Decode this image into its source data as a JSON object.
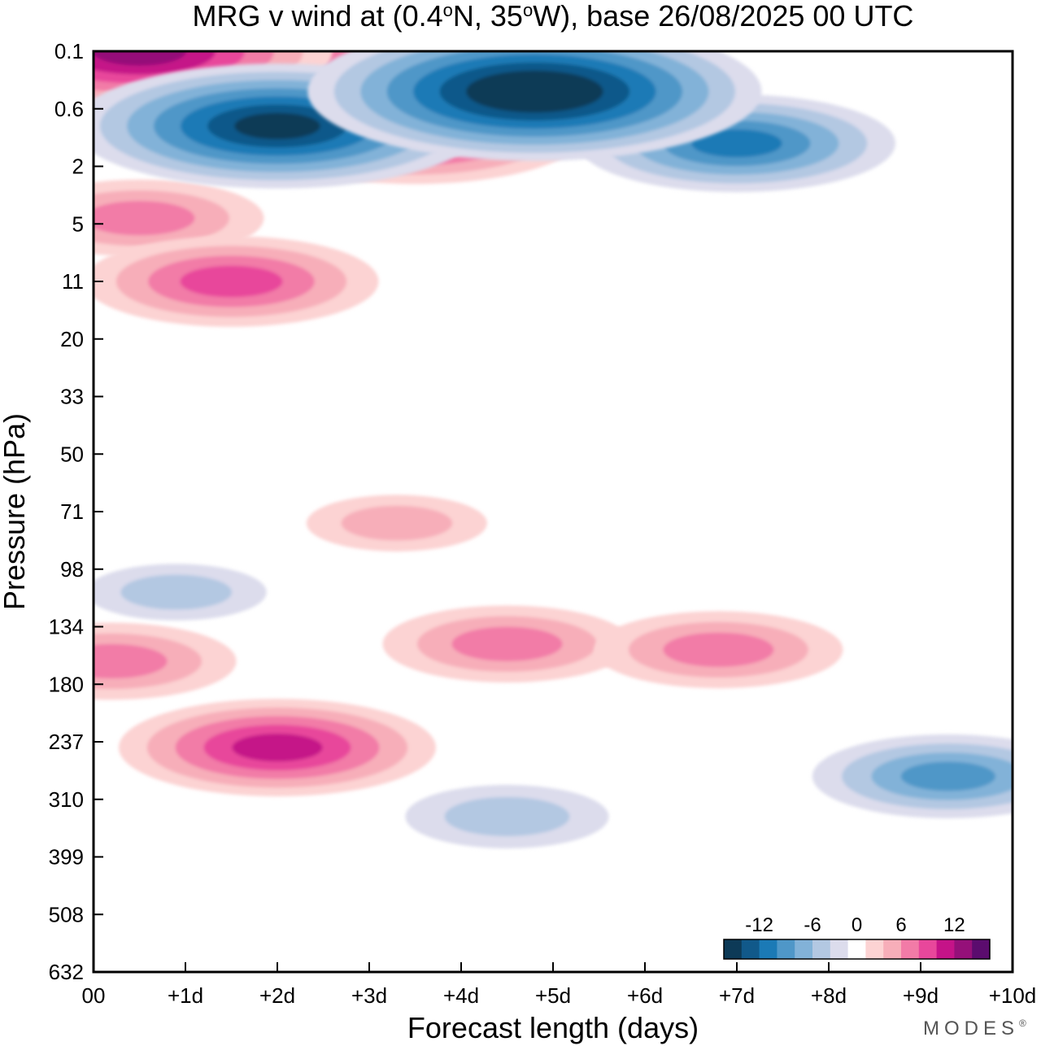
{
  "chart_data": {
    "type": "heatmap",
    "title": "MRG v wind at (0.4°N, 35°W),  base 26/08/2025  00 UTC",
    "title_parts": {
      "prefix": "MRG v wind at (0.4",
      "deg": "o",
      "lat": "N, 35",
      "lon": "W),  base 26/08/2025  00 UTC"
    },
    "xlabel": "Forecast length (days)",
    "ylabel": "Pressure (hPa)",
    "x_ticks": [
      "00",
      "+1d",
      "+2d",
      "+3d",
      "+4d",
      "+5d",
      "+6d",
      "+7d",
      "+8d",
      "+9d",
      "+10d"
    ],
    "y_ticks": [
      "0.1",
      "0.6",
      "2",
      "5",
      "11",
      "20",
      "33",
      "50",
      "71",
      "98",
      "134",
      "180",
      "237",
      "310",
      "399",
      "508",
      "632"
    ],
    "x_range_days": [
      0,
      10
    ],
    "colorbar": {
      "labels": [
        "-12",
        "-6",
        "0",
        "6",
        "12"
      ],
      "label_values": [
        -12,
        -6,
        0,
        6,
        12
      ],
      "levels": [
        -16,
        -14,
        -12,
        -10,
        -8,
        -6,
        -4,
        -2,
        2,
        4,
        6,
        8,
        10,
        12,
        14,
        16
      ],
      "colors": [
        "#0d3a57",
        "#11598a",
        "#1b7ab6",
        "#4f97c8",
        "#82b2d8",
        "#b3c8e2",
        "#dcdcec",
        "#ffffff",
        "#fcd3d3",
        "#f7aeb9",
        "#f27ba7",
        "#e8479b",
        "#c51388",
        "#951079",
        "#5b0c6e"
      ]
    },
    "features": [
      {
        "day": 0.5,
        "level": 0,
        "value": 13
      },
      {
        "day": 2.0,
        "level": 1.3,
        "value": -14
      },
      {
        "day": 2.0,
        "level": 0.6,
        "value": -9
      },
      {
        "day": 3.5,
        "level": 1.4,
        "value": 11
      },
      {
        "day": 3.5,
        "level": 0.3,
        "value": 10
      },
      {
        "day": 4.8,
        "level": 0.7,
        "value": -16
      },
      {
        "day": 7.0,
        "level": 1.6,
        "value": -10
      },
      {
        "day": 0.5,
        "level": 2.9,
        "value": 7
      },
      {
        "day": 1.5,
        "level": 4.0,
        "value": 9
      },
      {
        "day": 4.5,
        "level": 10.3,
        "value": 7
      },
      {
        "day": 6.8,
        "level": 10.4,
        "value": 7
      },
      {
        "day": 0.2,
        "level": 10.6,
        "value": 7
      },
      {
        "day": 2.0,
        "level": 12.1,
        "value": 10
      },
      {
        "day": 9.3,
        "level": 12.6,
        "value": -8
      },
      {
        "day": 4.5,
        "level": 13.3,
        "value": -5
      },
      {
        "day": 0.9,
        "level": 9.4,
        "value": -4
      },
      {
        "day": 3.3,
        "level": 8.2,
        "value": 4
      }
    ],
    "brand": "MODES",
    "brand_mark": "®"
  }
}
